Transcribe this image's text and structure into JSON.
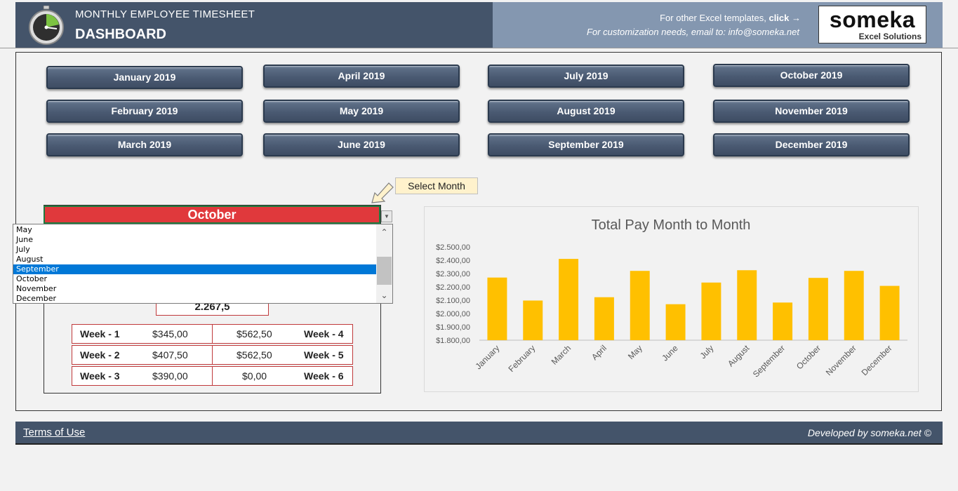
{
  "header": {
    "subtitle": "MONTHLY EMPLOYEE TIMESHEET",
    "title": "DASHBOARD",
    "templates_text": "For other Excel templates,",
    "templates_link": "click →",
    "email_text": "For customization needs, email to: info@someka.net",
    "logo_main": "someka",
    "logo_sub": "Excel Solutions"
  },
  "month_buttons": [
    "January 2019",
    "April 2019",
    "July 2019",
    "October 2019",
    "February 2019",
    "May 2019",
    "August 2019",
    "November 2019",
    "March 2019",
    "June 2019",
    "September 2019",
    "December 2019"
  ],
  "callout": "Select Month",
  "selector": {
    "value": "October",
    "dropdown_items": [
      "May",
      "June",
      "July",
      "August",
      "September",
      "October",
      "November",
      "December"
    ],
    "highlighted": "September"
  },
  "total": "2.267,5",
  "weeks": {
    "w1": {
      "label": "Week - 1",
      "value": "$345,00"
    },
    "w2": {
      "label": "Week - 2",
      "value": "$407,50"
    },
    "w3": {
      "label": "Week - 3",
      "value": "$390,00"
    },
    "w4": {
      "label": "Week - 4",
      "value": "$562,50"
    },
    "w5": {
      "label": "Week - 5",
      "value": "$562,50"
    },
    "w6": {
      "label": "Week - 6",
      "value": "$0,00"
    }
  },
  "chart_data": {
    "type": "bar",
    "title": "Total Pay Month to Month",
    "categories": [
      "January",
      "February",
      "March",
      "April",
      "May",
      "June",
      "July",
      "August",
      "September",
      "October",
      "November",
      "December"
    ],
    "values": [
      2270,
      2097.5,
      2410,
      2122.5,
      2320,
      2070,
      2232.5,
      2325,
      2082.5,
      2267.5,
      2320,
      2207.5
    ],
    "yticks": [
      "$1.800,00",
      "$1.900,00",
      "$2.000,00",
      "$2.100,00",
      "$2.200,00",
      "$2.300,00",
      "$2.400,00",
      "$2.500,00"
    ],
    "ylim": [
      1800,
      2500
    ],
    "bar_color": "#ffc000",
    "grid": false
  },
  "footer": {
    "terms": "Terms of Use",
    "developed": "Developed by someka.net ©"
  }
}
